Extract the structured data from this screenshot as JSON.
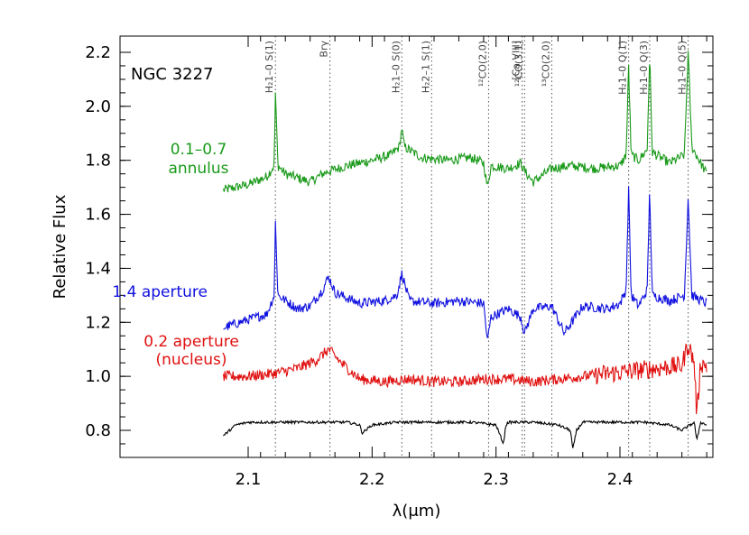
{
  "chart_data": {
    "type": "line",
    "title": "NGC 3227",
    "xlabel": "λ(μm)",
    "ylabel": "Relative Flux",
    "xlim": [
      2.12,
      2.475
    ],
    "ylim": [
      0.7,
      2.25
    ],
    "x_ticks": [
      2.1,
      2.2,
      2.3,
      2.4
    ],
    "x_tick_labels": [
      "2.1",
      "2.2",
      "2.3",
      "2.4"
    ],
    "y_ticks": [
      0.8,
      1.0,
      1.2,
      1.4,
      1.6,
      1.8,
      2.0,
      2.2
    ],
    "y_tick_labels": [
      "0.8",
      "1.0",
      "1.2",
      "1.4",
      "1.6",
      "1.8",
      "2.0",
      "2.2"
    ],
    "grid": false,
    "x_range_data": [
      2.08,
      2.47
    ],
    "line_markers": [
      {
        "wavelength": 2.122,
        "label": "H₂1–0 S(1)"
      },
      {
        "wavelength": 2.166,
        "label": "Brγ"
      },
      {
        "wavelength": 2.224,
        "label": "H₂1–0 S(0)"
      },
      {
        "wavelength": 2.248,
        "label": "H₂2–1 S(1)"
      },
      {
        "wavelength": 2.294,
        "label": "¹²CO(2,0)"
      },
      {
        "wavelength": 2.323,
        "label": "¹²CO(3,1)"
      },
      {
        "wavelength": 2.321,
        "label": "[Ca VIII]"
      },
      {
        "wavelength": 2.345,
        "label": "¹³CO(2,0)"
      },
      {
        "wavelength": 2.407,
        "label": "H₂1–0 Q(1)"
      },
      {
        "wavelength": 2.424,
        "label": "H₂1–0 Q(3)"
      },
      {
        "wavelength": 2.455,
        "label": "H₂1–0 Q(5)"
      }
    ],
    "series": [
      {
        "name": "0.1–0.7 annulus",
        "color": "#1a9a1a",
        "x": [
          2.08,
          2.1,
          2.115,
          2.121,
          2.122,
          2.124,
          2.13,
          2.15,
          2.16,
          2.165,
          2.18,
          2.2,
          2.215,
          2.222,
          2.224,
          2.226,
          2.24,
          2.26,
          2.28,
          2.29,
          2.293,
          2.296,
          2.31,
          2.32,
          2.323,
          2.33,
          2.345,
          2.36,
          2.38,
          2.4,
          2.405,
          2.407,
          2.409,
          2.415,
          2.422,
          2.424,
          2.426,
          2.44,
          2.452,
          2.455,
          2.458,
          2.47
        ],
        "y": [
          1.69,
          1.71,
          1.74,
          1.78,
          2.05,
          1.78,
          1.75,
          1.72,
          1.75,
          1.76,
          1.78,
          1.8,
          1.82,
          1.85,
          1.92,
          1.85,
          1.81,
          1.8,
          1.81,
          1.79,
          1.7,
          1.78,
          1.77,
          1.79,
          1.76,
          1.72,
          1.77,
          1.78,
          1.77,
          1.78,
          1.82,
          2.15,
          1.82,
          1.8,
          1.84,
          2.2,
          1.83,
          1.79,
          1.82,
          2.2,
          1.85,
          1.75
        ]
      },
      {
        "name": "1.4 aperture",
        "color": "#1010e0",
        "x": [
          2.08,
          2.1,
          2.115,
          2.121,
          2.122,
          2.124,
          2.14,
          2.15,
          2.16,
          2.165,
          2.17,
          2.19,
          2.21,
          2.22,
          2.224,
          2.23,
          2.25,
          2.27,
          2.29,
          2.293,
          2.296,
          2.31,
          2.32,
          2.323,
          2.33,
          2.345,
          2.355,
          2.37,
          2.39,
          2.4,
          2.405,
          2.407,
          2.409,
          2.415,
          2.422,
          2.424,
          2.426,
          2.44,
          2.452,
          2.455,
          2.458,
          2.47
        ],
        "y": [
          1.18,
          1.21,
          1.23,
          1.3,
          1.57,
          1.3,
          1.25,
          1.26,
          1.32,
          1.37,
          1.31,
          1.27,
          1.28,
          1.3,
          1.38,
          1.28,
          1.27,
          1.28,
          1.27,
          1.13,
          1.22,
          1.25,
          1.22,
          1.16,
          1.25,
          1.26,
          1.16,
          1.26,
          1.25,
          1.27,
          1.32,
          1.7,
          1.3,
          1.26,
          1.32,
          1.7,
          1.3,
          1.28,
          1.3,
          1.66,
          1.3,
          1.27
        ]
      },
      {
        "name": "0.2 aperture (nucleus)",
        "color": "#e01010",
        "x": [
          2.08,
          2.1,
          2.12,
          2.14,
          2.155,
          2.165,
          2.175,
          2.19,
          2.21,
          2.23,
          2.25,
          2.27,
          2.29,
          2.31,
          2.33,
          2.35,
          2.37,
          2.39,
          2.41,
          2.43,
          2.45,
          2.455,
          2.46,
          2.462,
          2.465,
          2.47
        ],
        "y": [
          1.0,
          1.0,
          1.01,
          1.03,
          1.06,
          1.1,
          1.05,
          0.99,
          0.98,
          0.99,
          0.98,
          0.98,
          0.99,
          0.99,
          0.98,
          0.99,
          1.0,
          1.01,
          1.02,
          1.03,
          1.04,
          1.12,
          1.05,
          0.85,
          1.05,
          1.04
        ]
      },
      {
        "name": "",
        "color": "#000000",
        "x": [
          2.08,
          2.085,
          2.09,
          2.1,
          2.12,
          2.14,
          2.16,
          2.18,
          2.19,
          2.192,
          2.2,
          2.22,
          2.24,
          2.26,
          2.28,
          2.3,
          2.306,
          2.308,
          2.31,
          2.33,
          2.35,
          2.36,
          2.362,
          2.365,
          2.37,
          2.38,
          2.4,
          2.42,
          2.44,
          2.45,
          2.46,
          2.462,
          2.465,
          2.47
        ],
        "y": [
          0.78,
          0.8,
          0.82,
          0.83,
          0.83,
          0.83,
          0.83,
          0.83,
          0.82,
          0.79,
          0.82,
          0.83,
          0.83,
          0.83,
          0.83,
          0.82,
          0.75,
          0.82,
          0.83,
          0.83,
          0.82,
          0.8,
          0.73,
          0.8,
          0.83,
          0.83,
          0.83,
          0.83,
          0.82,
          0.8,
          0.83,
          0.76,
          0.83,
          0.82
        ]
      }
    ],
    "series_labels": [
      {
        "series": 0,
        "lines": [
          "0.1–0.7",
          "annulus"
        ]
      },
      {
        "series": 1,
        "lines": [
          "1.4 aperture"
        ]
      },
      {
        "series": 2,
        "lines": [
          "0.2 aperture",
          "(nucleus)"
        ]
      }
    ]
  }
}
